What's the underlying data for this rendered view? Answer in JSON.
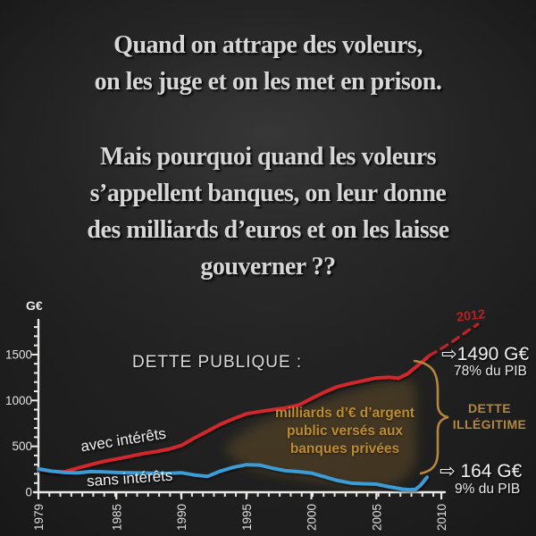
{
  "headline": {
    "para1_lines": [
      "Quand on attrape des  voleurs,",
      "on les juge et on les met en prison."
    ],
    "para2_lines": [
      "Mais pourquoi quand les voleurs",
      "s’appellent banques, on leur donne",
      "des milliards d’euros et on les laisse",
      "gouverner ??"
    ]
  },
  "chart": {
    "unit_label": "G€",
    "title": "DETTE PUBLIQUE :",
    "red_series_label": "avec intérêts",
    "blue_series_label": "sans intérêts",
    "blob_caption": "milliards d’€ d’argent\npublic versés aux\nbanques privées",
    "projection_year_label": "2012",
    "arrow_icon": "⇨",
    "red_end_value": "1490 G€",
    "red_end_share": "78% du PIB",
    "blue_end_value": "164 G€",
    "blue_end_share": "9% du PIB",
    "illegitimate_label": "DETTE\nILLÉGITIME"
  },
  "colors": {
    "background": "#1d1d1d",
    "headline_text": "#d6d6d6",
    "axis": "#e9e9e7",
    "red_line": "#d2282d",
    "red_dashed": "#b82424",
    "blue_line": "#3b9cd6",
    "orange_accent": "#b5863b",
    "blob_fill": "#8a6524",
    "projection_label": "#b32121"
  },
  "chart_data": {
    "type": "line",
    "title": "DETTE PUBLIQUE :",
    "xlabel": "",
    "ylabel": "G€",
    "xlim": [
      1979,
      2013
    ],
    "ylim": [
      0,
      1880
    ],
    "x_ticks": [
      1979,
      1985,
      1990,
      1995,
      2000,
      2005,
      2010
    ],
    "y_ticks": [
      0,
      500,
      1000,
      1500
    ],
    "y_minor_step": 100,
    "grid": false,
    "legend_position": "on-line labels",
    "series": [
      {
        "name": "avec intérêts",
        "color": "#d2282d",
        "style": "solid",
        "points": [
          [
            1979,
            245
          ],
          [
            1980,
            228
          ],
          [
            1981,
            222
          ],
          [
            1982,
            262
          ],
          [
            1983,
            300
          ],
          [
            1984,
            335
          ],
          [
            1985,
            362
          ],
          [
            1986,
            390
          ],
          [
            1987,
            420
          ],
          [
            1988,
            442
          ],
          [
            1989,
            468
          ],
          [
            1990,
            510
          ],
          [
            1991,
            590
          ],
          [
            1992,
            665
          ],
          [
            1993,
            740
          ],
          [
            1994,
            800
          ],
          [
            1995,
            855
          ],
          [
            1996,
            878
          ],
          [
            1997,
            898
          ],
          [
            1998,
            918
          ],
          [
            1999,
            948
          ],
          [
            2000,
            1020
          ],
          [
            2001,
            1090
          ],
          [
            2002,
            1150
          ],
          [
            2003,
            1185
          ],
          [
            2004,
            1215
          ],
          [
            2005,
            1245
          ],
          [
            2006,
            1252
          ],
          [
            2006.7,
            1242
          ],
          [
            2007.4,
            1290
          ],
          [
            2008,
            1360
          ],
          [
            2008.6,
            1430
          ],
          [
            2009.1,
            1490
          ]
        ]
      },
      {
        "name": "sans intérêts",
        "color": "#3b9cd6",
        "style": "solid",
        "points": [
          [
            1979,
            255
          ],
          [
            1980,
            230
          ],
          [
            1981,
            215
          ],
          [
            1982,
            210
          ],
          [
            1983,
            225
          ],
          [
            1984,
            222
          ],
          [
            1985,
            215
          ],
          [
            1986,
            212
          ],
          [
            1987,
            210
          ],
          [
            1988,
            205
          ],
          [
            1989,
            205
          ],
          [
            1990,
            212
          ],
          [
            1991,
            188
          ],
          [
            1992,
            172
          ],
          [
            1993,
            230
          ],
          [
            1994,
            272
          ],
          [
            1995,
            300
          ],
          [
            1996,
            296
          ],
          [
            1997,
            262
          ],
          [
            1998,
            235
          ],
          [
            1999,
            224
          ],
          [
            2000,
            208
          ],
          [
            2001,
            168
          ],
          [
            2002,
            128
          ],
          [
            2003,
            100
          ],
          [
            2004,
            92
          ],
          [
            2005,
            88
          ],
          [
            2006,
            58
          ],
          [
            2007,
            34
          ],
          [
            2007.5,
            28
          ],
          [
            2008,
            30
          ],
          [
            2008.4,
            75
          ],
          [
            2008.9,
            164
          ]
        ]
      },
      {
        "name": "projection 2012",
        "color": "#b82424",
        "style": "dashed",
        "points": [
          [
            2009.1,
            1490
          ],
          [
            2009.7,
            1540
          ],
          [
            2010.4,
            1600
          ],
          [
            2011,
            1655
          ],
          [
            2011.6,
            1715
          ],
          [
            2012.2,
            1775
          ],
          [
            2012.8,
            1830
          ]
        ]
      }
    ],
    "annotations": [
      {
        "text": "2012",
        "series": "projection 2012"
      },
      {
        "text": "⇨1490 G€ 78% du PIB",
        "target": "end of avec intérêts"
      },
      {
        "text": "⇨ 164 G€ 9% du PIB",
        "target": "end of sans intérêts"
      },
      {
        "text": "DETTE ILLÉGITIME",
        "target": "gap between series"
      },
      {
        "text": "milliards d’€ d’argent public versés aux banques privées",
        "target": "area between series"
      }
    ]
  }
}
